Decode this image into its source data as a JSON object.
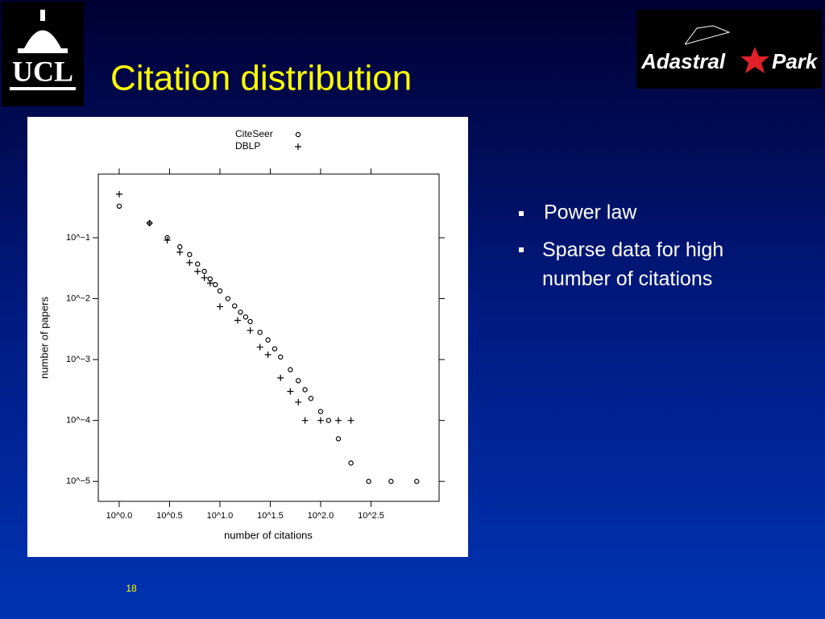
{
  "slide": {
    "title": "Citation distribution",
    "bullets": [
      "Power law",
      "Sparse data for high number of citations"
    ],
    "page_number": "18"
  },
  "logos": {
    "left": "UCL",
    "right_first": "Adastral",
    "right_second": "Park"
  },
  "chart_data": {
    "type": "scatter",
    "x_label": "number of citations",
    "y_label": "number of papers",
    "x_log": true,
    "y_log": true,
    "xlim": [
      0.62,
      1500
    ],
    "ylim": [
      4.7e-06,
      1.11
    ],
    "xticks": [
      {
        "value": 1,
        "label": "10^0.0"
      },
      {
        "value": 3.1623,
        "label": "10^0.5"
      },
      {
        "value": 10,
        "label": "10^1.0"
      },
      {
        "value": 31.623,
        "label": "10^1.5"
      },
      {
        "value": 100,
        "label": "10^2.0"
      },
      {
        "value": 316.23,
        "label": "10^2.5"
      }
    ],
    "yticks": [
      {
        "value": 0.1,
        "label": "10^−1"
      },
      {
        "value": 0.01,
        "label": "10^−2"
      },
      {
        "value": 0.001,
        "label": "10^−3"
      },
      {
        "value": 0.0001,
        "label": "10^−4"
      },
      {
        "value": 1e-05,
        "label": "10^−5"
      }
    ],
    "series": [
      {
        "name": "CiteSeer",
        "marker": "circle",
        "color": "#000000",
        "x": [
          1,
          2,
          3,
          4,
          5,
          6,
          7,
          8,
          9,
          10,
          12,
          14,
          16,
          18,
          20,
          25,
          30,
          35,
          40,
          50,
          60,
          70,
          80,
          100,
          120,
          150,
          200,
          300,
          500,
          900
        ],
        "values": [
          0.33,
          0.174,
          0.1,
          0.071,
          0.053,
          0.037,
          0.028,
          0.021,
          0.017,
          0.0134,
          0.01,
          0.0076,
          0.006,
          0.005,
          0.0042,
          0.0028,
          0.0021,
          0.0015,
          0.0011,
          0.00068,
          0.00045,
          0.00032,
          0.00023,
          0.00014,
          0.0001,
          5e-05,
          2e-05,
          1e-05,
          1e-05,
          1e-05
        ]
      },
      {
        "name": "DBLP",
        "marker": "plus",
        "color": "#000000",
        "x": [
          1,
          2,
          3,
          4,
          5,
          6,
          7,
          8,
          10,
          15,
          20,
          25,
          30,
          40,
          50,
          60,
          70,
          100,
          150,
          200
        ],
        "values": [
          0.52,
          0.174,
          0.091,
          0.058,
          0.039,
          0.028,
          0.022,
          0.018,
          0.0074,
          0.0044,
          0.003,
          0.0016,
          0.0012,
          0.0005,
          0.0003,
          0.0002,
          0.0001,
          0.0001,
          0.0001,
          0.0001
        ]
      }
    ]
  }
}
